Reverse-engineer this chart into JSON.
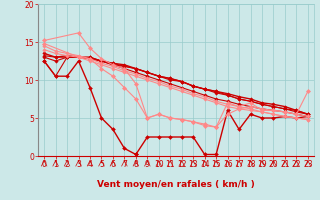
{
  "bg_color": "#cce8e8",
  "grid_color": "#99cccc",
  "line_color_dark": "#cc0000",
  "line_color_light": "#ff8888",
  "xlabel": "Vent moyen/en rafales ( km/h )",
  "xlim": [
    -0.5,
    23.5
  ],
  "ylim": [
    0,
    20
  ],
  "xticks": [
    0,
    1,
    2,
    3,
    4,
    5,
    6,
    7,
    8,
    9,
    10,
    11,
    12,
    13,
    14,
    15,
    16,
    17,
    18,
    19,
    20,
    21,
    22,
    23
  ],
  "yticks": [
    0,
    5,
    10,
    15,
    20
  ],
  "series": [
    {
      "x": [
        0,
        1,
        2,
        3,
        4,
        5,
        6,
        7,
        8,
        9,
        10,
        11,
        12,
        13,
        14,
        15,
        16,
        17,
        18,
        19,
        20,
        21,
        22,
        23
      ],
      "y": [
        12.5,
        10.5,
        13.0,
        13.0,
        13.0,
        12.5,
        12.0,
        11.5,
        11.0,
        10.5,
        10.0,
        9.5,
        9.0,
        8.5,
        8.0,
        7.5,
        7.2,
        6.8,
        6.5,
        6.2,
        6.0,
        5.8,
        5.5,
        5.2
      ],
      "color": "#cc0000",
      "lw": 0.8,
      "marker": "D",
      "ms": 1.8
    },
    {
      "x": [
        0,
        1,
        2,
        3,
        4,
        5,
        6,
        7,
        8,
        9,
        10,
        11,
        12,
        13,
        14,
        15,
        16,
        17,
        18,
        19,
        20,
        21,
        22,
        23
      ],
      "y": [
        13.0,
        12.5,
        13.0,
        13.0,
        12.8,
        12.5,
        12.0,
        11.8,
        11.5,
        11.0,
        10.5,
        10.0,
        9.8,
        9.2,
        8.8,
        8.3,
        8.0,
        7.5,
        7.2,
        6.8,
        6.5,
        6.2,
        5.8,
        5.5
      ],
      "color": "#cc0000",
      "lw": 0.8,
      "marker": "D",
      "ms": 1.8
    },
    {
      "x": [
        0,
        1,
        2,
        3,
        4,
        5,
        6,
        7,
        8,
        9,
        10,
        11,
        12,
        13,
        14,
        15,
        16,
        17,
        18,
        19,
        20,
        21,
        22,
        23
      ],
      "y": [
        13.2,
        13.0,
        13.0,
        13.0,
        13.0,
        12.5,
        12.2,
        11.8,
        11.5,
        11.0,
        10.5,
        10.2,
        9.8,
        9.2,
        8.8,
        8.5,
        8.0,
        7.5,
        7.2,
        6.8,
        6.5,
        6.2,
        6.0,
        5.5
      ],
      "color": "#cc0000",
      "lw": 0.8,
      "marker": "D",
      "ms": 1.8
    },
    {
      "x": [
        0,
        1,
        2,
        3,
        4,
        5,
        6,
        7,
        8,
        9,
        10,
        11,
        12,
        13,
        14,
        15,
        16,
        17,
        18,
        19,
        20,
        21,
        22,
        23
      ],
      "y": [
        13.5,
        13.0,
        13.2,
        13.0,
        12.8,
        12.5,
        12.2,
        12.0,
        11.5,
        11.0,
        10.5,
        10.2,
        9.8,
        9.2,
        8.8,
        8.5,
        8.2,
        7.8,
        7.5,
        7.0,
        6.8,
        6.5,
        6.0,
        5.5
      ],
      "color": "#cc0000",
      "lw": 1.0,
      "marker": "D",
      "ms": 1.8
    },
    {
      "x": [
        0,
        1,
        2,
        3,
        4,
        5,
        6,
        7,
        8
      ],
      "y": [
        12.5,
        10.5,
        10.5,
        12.5,
        9.0,
        5.0,
        3.5,
        1.0,
        0.2
      ],
      "color": "#cc0000",
      "lw": 1.0,
      "marker": "D",
      "ms": 2.0
    },
    {
      "x": [
        8,
        9,
        10,
        11,
        12,
        13,
        14,
        15,
        16,
        17,
        18,
        19,
        20,
        21,
        22,
        23
      ],
      "y": [
        0.2,
        2.5,
        2.5,
        2.5,
        2.5,
        2.5,
        0.2,
        0.2,
        6.0,
        3.5,
        5.5,
        5.0,
        5.0,
        5.2,
        5.0,
        5.2
      ],
      "color": "#cc0000",
      "lw": 1.0,
      "marker": "D",
      "ms": 2.0
    },
    {
      "x": [
        0,
        1,
        2,
        3,
        4,
        5,
        6,
        7,
        8,
        9,
        10,
        11,
        12,
        13,
        14,
        15,
        16,
        17,
        18,
        19,
        20,
        21,
        22,
        23
      ],
      "y": [
        14.0,
        13.5,
        13.2,
        13.0,
        12.5,
        12.0,
        11.5,
        11.0,
        10.5,
        10.0,
        9.5,
        9.0,
        8.5,
        8.0,
        7.5,
        7.0,
        6.5,
        6.2,
        6.0,
        5.8,
        5.5,
        5.2,
        5.0,
        4.8
      ],
      "color": "#ff8888",
      "lw": 0.8,
      "marker": "D",
      "ms": 1.8
    },
    {
      "x": [
        0,
        1,
        2,
        3,
        4,
        5,
        6,
        7,
        8,
        9,
        10,
        11,
        12,
        13,
        14,
        15,
        16,
        17,
        18,
        19,
        20,
        21,
        22,
        23
      ],
      "y": [
        14.5,
        13.8,
        13.5,
        13.2,
        12.8,
        12.2,
        11.8,
        11.2,
        10.8,
        10.2,
        9.8,
        9.2,
        8.8,
        8.2,
        7.8,
        7.2,
        6.8,
        6.5,
        6.2,
        5.8,
        5.5,
        5.2,
        5.0,
        4.8
      ],
      "color": "#ff8888",
      "lw": 0.8,
      "marker": "D",
      "ms": 1.8
    },
    {
      "x": [
        0,
        3,
        4,
        5,
        6,
        7,
        8,
        9,
        10,
        11,
        12,
        13,
        14,
        15,
        16,
        17,
        18,
        19,
        20,
        21,
        22,
        23
      ],
      "y": [
        14.8,
        13.0,
        12.8,
        11.5,
        10.5,
        9.0,
        7.5,
        5.0,
        5.5,
        5.0,
        4.8,
        4.5,
        4.2,
        3.8,
        5.5,
        6.2,
        6.5,
        6.2,
        6.0,
        5.8,
        5.5,
        8.5
      ],
      "color": "#ff8888",
      "lw": 0.8,
      "marker": "D",
      "ms": 2.2
    },
    {
      "x": [
        0,
        3,
        4,
        5,
        6,
        7,
        8,
        9,
        10,
        11,
        12,
        13,
        14,
        15,
        16,
        17,
        18,
        19,
        20,
        21,
        22,
        23
      ],
      "y": [
        15.2,
        16.2,
        14.2,
        12.8,
        12.0,
        11.5,
        9.5,
        5.0,
        5.5,
        5.0,
        4.8,
        4.5,
        4.0,
        3.8,
        7.0,
        6.5,
        7.0,
        6.0,
        6.0,
        5.8,
        5.5,
        5.2
      ],
      "color": "#ff8888",
      "lw": 0.8,
      "marker": "D",
      "ms": 2.2
    }
  ],
  "wind_arrows": [
    0,
    1,
    2,
    3,
    4,
    5,
    6,
    7,
    8,
    9,
    10,
    11,
    12,
    13,
    14,
    15,
    16,
    17,
    18,
    19,
    20,
    21,
    22,
    23
  ],
  "axis_label_fontsize": 6.5,
  "tick_fontsize": 5.5
}
